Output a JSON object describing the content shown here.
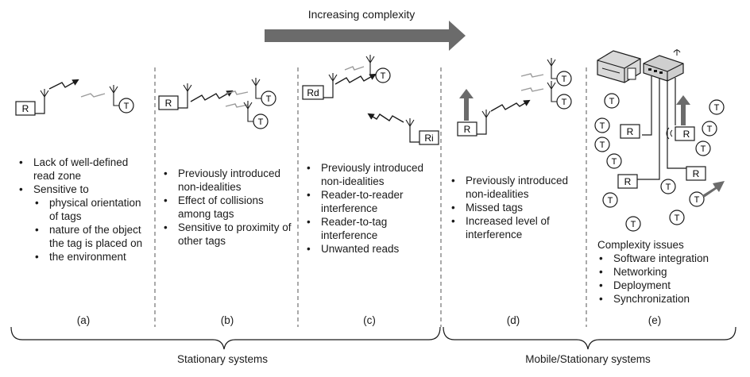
{
  "header": {
    "title": "Increasing complexity"
  },
  "panels": [
    {
      "id": "a",
      "label": "(a)",
      "reader_tag": "R",
      "tag_tag": "T",
      "bullets": [
        {
          "text": "Lack of well-defined read zone"
        },
        {
          "text": "Sensitive to",
          "sub": [
            "physical orientation of tags",
            "nature of the object the tag is placed on",
            "the environment"
          ]
        }
      ]
    },
    {
      "id": "b",
      "label": "(b)",
      "reader_tag": "R",
      "tag_tag": "T",
      "bullets": [
        {
          "text": "Previously introduced non-idealities"
        },
        {
          "text": "Effect of collisions among tags"
        },
        {
          "text": "Sensitive to proximity of other tags"
        }
      ]
    },
    {
      "id": "c",
      "label": "(c)",
      "reader_tags": [
        "Rd",
        "Ri"
      ],
      "tag_tag": "T",
      "bullets": [
        {
          "text": "Previously introduced non-idealities"
        },
        {
          "text": "Reader-to-reader interference"
        },
        {
          "text": "Reader-to-tag interference"
        },
        {
          "text": "Unwanted reads"
        }
      ]
    },
    {
      "id": "d",
      "label": "(d)",
      "reader_tag": "R",
      "tag_tag": "T",
      "bullets": [
        {
          "text": "Previously introduced non-idealities"
        },
        {
          "text": "Missed tags"
        },
        {
          "text": "Increased level of interference"
        }
      ]
    },
    {
      "id": "e",
      "label": "(e)",
      "reader_tag": "R",
      "tag_tag": "T",
      "heading": "Complexity issues",
      "bullets": [
        {
          "text": "Software integration"
        },
        {
          "text": "Networking"
        },
        {
          "text": "Deployment"
        },
        {
          "text": "Synchronization"
        }
      ]
    }
  ],
  "groups": [
    {
      "label": "Stationary systems"
    },
    {
      "label": "Mobile/Stationary systems"
    }
  ],
  "icons": [
    "arrow-right-icon",
    "reader-icon",
    "tag-icon",
    "antenna-icon",
    "signal-zigzag-icon",
    "computer-icon",
    "network-switch-icon",
    "movement-arrow-icon"
  ],
  "colors": {
    "arrow": "#6b6b6b",
    "ink": "#1a1a1a",
    "signal_faint": "#9a9a9a"
  }
}
